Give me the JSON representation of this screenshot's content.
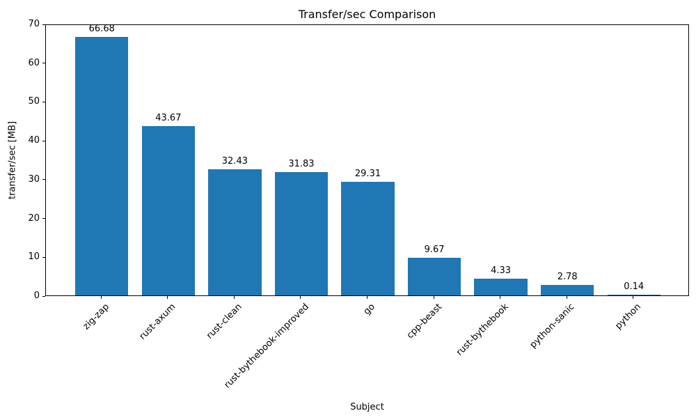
{
  "chart_data": {
    "type": "bar",
    "title": "Transfer/sec Comparison",
    "xlabel": "Subject",
    "ylabel": "transfer/sec [MB]",
    "categories": [
      "zig-zap",
      "rust-axum",
      "rust-clean",
      "rust-bythebook-improved",
      "go",
      "cpp-beast",
      "rust-bythebook",
      "python-sanic",
      "python"
    ],
    "values": [
      66.68,
      43.67,
      32.43,
      31.83,
      29.31,
      9.67,
      4.33,
      2.78,
      0.14
    ],
    "bar_labels": [
      "66.68",
      "43.67",
      "32.43",
      "31.83",
      "29.31",
      "9.67",
      "4.33",
      "2.78",
      "0.14"
    ],
    "ylim": [
      0,
      70
    ],
    "yticks": [
      0,
      10,
      20,
      30,
      40,
      50,
      60,
      70
    ],
    "bar_color": "#1f77b4",
    "grid": false,
    "legend_position": "none",
    "xtick_rotation_deg": 45
  }
}
